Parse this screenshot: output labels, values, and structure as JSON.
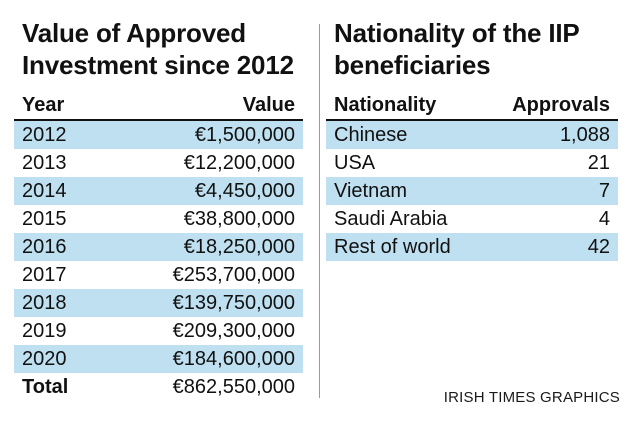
{
  "colors": {
    "row_shade": "#bfe0f0",
    "text": "#111111",
    "divider": "#9a9a9a"
  },
  "chart_data": [
    {
      "type": "table",
      "title_line1": "Value of Approved",
      "title_line2": "Investment since 2012",
      "columns": [
        "Year",
        "Value"
      ],
      "rows": [
        {
          "year": "2012",
          "value": "€1,500,000"
        },
        {
          "year": "2013",
          "value": "€12,200,000"
        },
        {
          "year": "2014",
          "value": "€4,450,000"
        },
        {
          "year": "2015",
          "value": "€38,800,000"
        },
        {
          "year": "2016",
          "value": "€18,250,000"
        },
        {
          "year": "2017",
          "value": "€253,700,000"
        },
        {
          "year": "2018",
          "value": "€139,750,000"
        },
        {
          "year": "2019",
          "value": "€209,300,000"
        },
        {
          "year": "2020",
          "value": "€184,600,000"
        }
      ],
      "total": {
        "label": "Total",
        "value": "€862,550,000"
      }
    },
    {
      "type": "table",
      "title_line1": "Nationality of the IIP",
      "title_line2": "beneficiaries",
      "columns": [
        "Nationality",
        "Approvals"
      ],
      "rows": [
        {
          "nationality": "Chinese",
          "approvals": "1,088"
        },
        {
          "nationality": "USA",
          "approvals": "21"
        },
        {
          "nationality": "Vietnam",
          "approvals": "7"
        },
        {
          "nationality": "Saudi Arabia",
          "approvals": "4"
        },
        {
          "nationality": "Rest of world",
          "approvals": "42"
        }
      ]
    }
  ],
  "credit": "IRISH TIMES GRAPHICS"
}
